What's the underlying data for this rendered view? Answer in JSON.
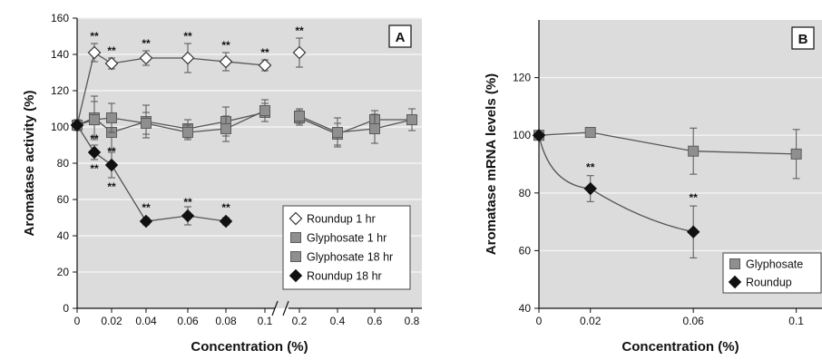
{
  "colors": {
    "panel_bg": "#dcdcdc",
    "grid": "#f4f4f4",
    "axis": "#111111",
    "line": "#555555",
    "glyphosate": "#8f8f8f",
    "roundup": "#111111",
    "open_marker": "#ffffff"
  },
  "chart_data": [
    {
      "type": "line",
      "panel_label": "A",
      "xlabel": "Concentration (%)",
      "ylabel": "Aromatase activity (%)",
      "ylim": [
        0,
        160
      ],
      "yticks": [
        "0",
        "20",
        "40",
        "60",
        "80",
        "100",
        "120",
        "140",
        "160"
      ],
      "x_tick_labels": [
        "0",
        "0.02",
        "0.04",
        "0.06",
        "0.08",
        "0.1",
        "0.2",
        "0.4",
        "0.6",
        "0.8"
      ],
      "x_axis_break": "between 0.1 and 0.2",
      "grid": true,
      "legend_position": "bottom-right",
      "significance_marker": "**",
      "series": [
        {
          "name": "Roundup 1 hr",
          "marker": "open-diamond",
          "points": [
            {
              "x": "0",
              "y": 101,
              "err": 3
            },
            {
              "x": "0.01",
              "y": 141,
              "err": 5,
              "sig": true
            },
            {
              "x": "0.02",
              "y": 135,
              "err": 3,
              "sig": true
            },
            {
              "x": "0.04",
              "y": 138,
              "err": 4,
              "sig": true
            },
            {
              "x": "0.06",
              "y": 138,
              "err": 8,
              "sig": true
            },
            {
              "x": "0.08",
              "y": 136,
              "err": 5,
              "sig": true
            },
            {
              "x": "0.1",
              "y": 134,
              "err": 3,
              "sig": true
            },
            {
              "x": "0.2",
              "y": 141,
              "err": 8,
              "sig": true
            }
          ]
        },
        {
          "name": "Glyphosate 1 hr",
          "marker": "square",
          "points": [
            {
              "x": "0",
              "y": 101,
              "err": 3
            },
            {
              "x": "0.01",
              "y": 105,
              "err": 12
            },
            {
              "x": "0.02",
              "y": 97,
              "err": 10
            },
            {
              "x": "0.04",
              "y": 103,
              "err": 9
            },
            {
              "x": "0.06",
              "y": 99,
              "err": 5
            },
            {
              "x": "0.08",
              "y": 103,
              "err": 8
            },
            {
              "x": "0.1",
              "y": 108,
              "err": 5
            },
            {
              "x": "0.2",
              "y": 105,
              "err": 4
            },
            {
              "x": "0.4",
              "y": 96,
              "err": 6
            },
            {
              "x": "0.6",
              "y": 104,
              "err": 5
            },
            {
              "x": "0.8",
              "y": 104,
              "err": 6
            }
          ]
        },
        {
          "name": "Glyphosate 18 hr",
          "marker": "square",
          "points": [
            {
              "x": "0",
              "y": 101,
              "err": 3
            },
            {
              "x": "0.01",
              "y": 104,
              "err": 10
            },
            {
              "x": "0.02",
              "y": 105,
              "err": 8
            },
            {
              "x": "0.04",
              "y": 102,
              "err": 6
            },
            {
              "x": "0.06",
              "y": 97,
              "err": 4
            },
            {
              "x": "0.08",
              "y": 99,
              "err": 7
            },
            {
              "x": "0.1",
              "y": 109,
              "err": 6
            },
            {
              "x": "0.2",
              "y": 106,
              "err": 4
            },
            {
              "x": "0.4",
              "y": 97,
              "err": 8
            },
            {
              "x": "0.6",
              "y": 99,
              "err": 8
            },
            {
              "x": "0.8",
              "y": 104,
              "err": 6
            }
          ]
        },
        {
          "name": "Roundup 18 hr",
          "marker": "filled-diamond",
          "points": [
            {
              "x": "0",
              "y": 101,
              "err": 3
            },
            {
              "x": "0.01",
              "y": 86,
              "err": 4,
              "sig": true
            },
            {
              "x": "0.02",
              "y": 79,
              "err": 7,
              "sig": true
            },
            {
              "x": "0.04",
              "y": 48,
              "err": 2,
              "sig": true
            },
            {
              "x": "0.06",
              "y": 51,
              "err": 5,
              "sig": true
            },
            {
              "x": "0.08",
              "y": 48,
              "err": 2,
              "sig": true
            }
          ]
        }
      ]
    },
    {
      "type": "line",
      "panel_label": "B",
      "xlabel": "Concentration (%)",
      "ylabel": "Aromatase mRNA levels (%)",
      "ylim": [
        40,
        140
      ],
      "yticks": [
        "40",
        "60",
        "80",
        "100",
        "120"
      ],
      "xlim": [
        0,
        0.11
      ],
      "x_tick_labels": [
        "0",
        "0.02",
        "0.06",
        "0.1"
      ],
      "x_ticks": [
        0,
        0.02,
        0.06,
        0.1
      ],
      "grid": true,
      "legend_position": "bottom-right",
      "significance_marker": "**",
      "series": [
        {
          "name": "Glyphosate",
          "marker": "square",
          "points": [
            {
              "x": 0,
              "y": 100,
              "err": 0
            },
            {
              "x": 0.02,
              "y": 101,
              "err": 1
            },
            {
              "x": 0.06,
              "y": 94.5,
              "err": 8
            },
            {
              "x": 0.1,
              "y": 93.5,
              "err": 8.5
            }
          ]
        },
        {
          "name": "Roundup",
          "marker": "filled-diamond",
          "points": [
            {
              "x": 0,
              "y": 100,
              "err": 0
            },
            {
              "x": 0.02,
              "y": 81.5,
              "err": 4.5,
              "sig": true
            },
            {
              "x": 0.06,
              "y": 66.5,
              "err": 9,
              "sig": true
            }
          ]
        }
      ]
    }
  ]
}
